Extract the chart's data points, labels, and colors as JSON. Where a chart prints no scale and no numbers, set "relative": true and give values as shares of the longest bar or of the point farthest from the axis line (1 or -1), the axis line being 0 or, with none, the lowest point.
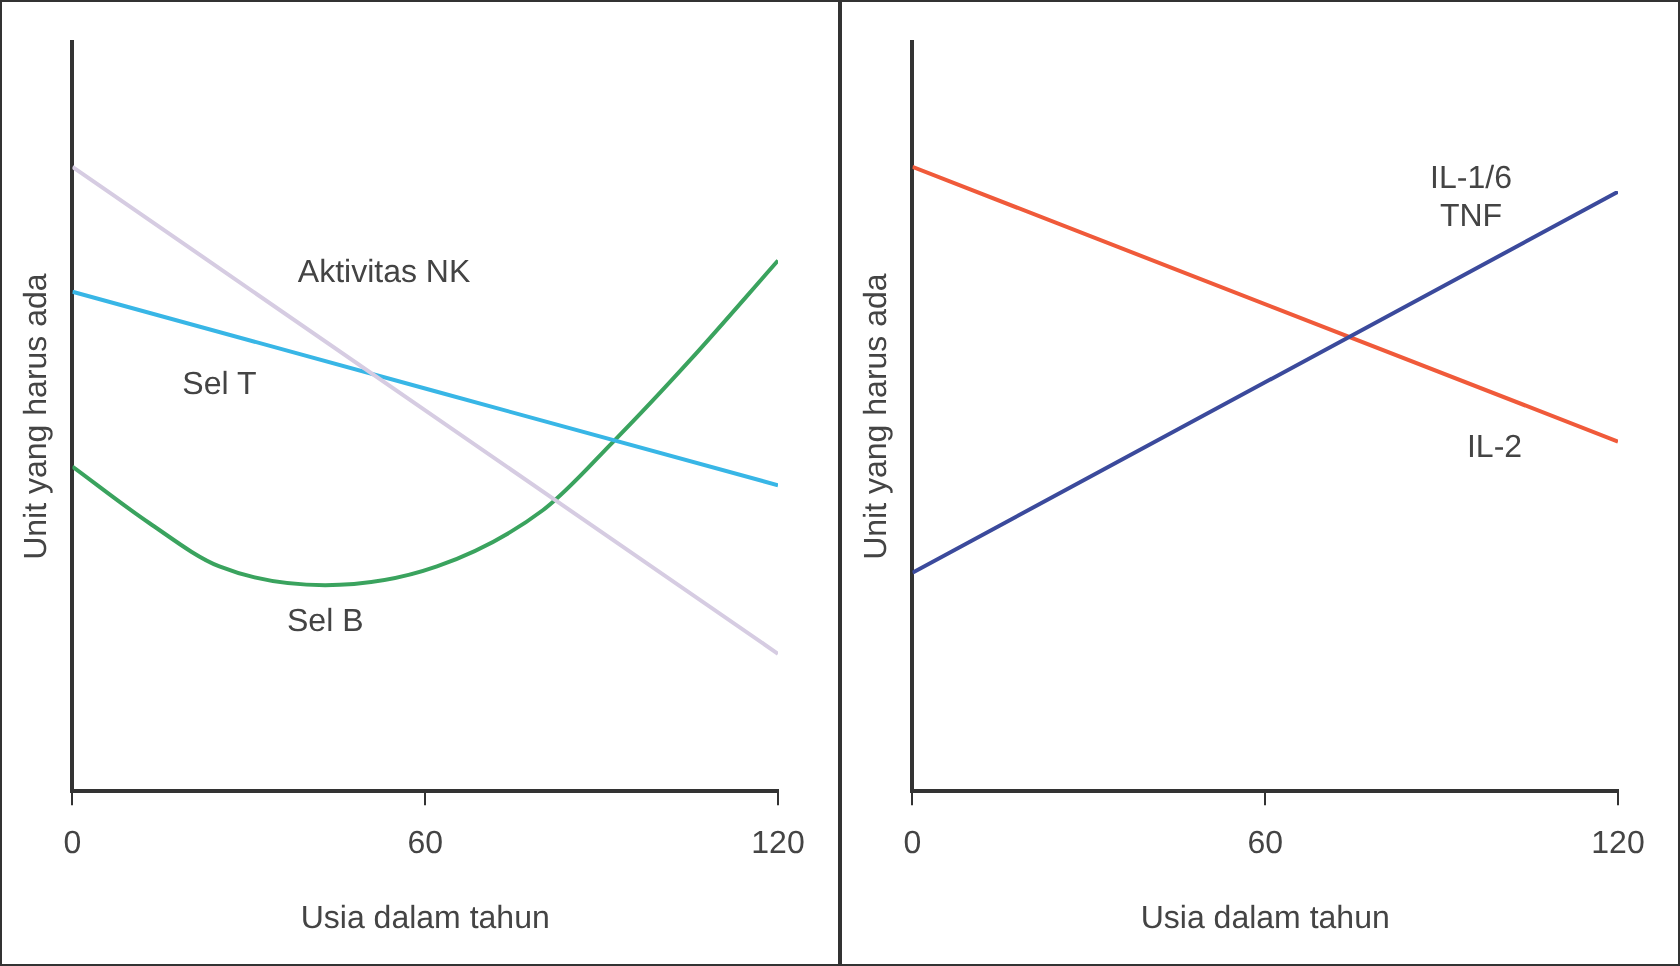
{
  "chart_data": [
    {
      "type": "line",
      "relative": true,
      "xlabel": "Usia dalam tahun",
      "ylabel": "Unit yang harus ada",
      "xlim": [
        0,
        120
      ],
      "xticks": [
        0,
        60,
        120
      ],
      "grid": false,
      "legend": false,
      "marker": "none",
      "series": [
        {
          "name": "Aktivitas NK",
          "color": "#d6cce2",
          "x": [
            0,
            120
          ],
          "values": [
            1,
            0.22
          ]
        },
        {
          "name": "Sel T",
          "color": "#38b6e6",
          "x": [
            0,
            120
          ],
          "values": [
            0.8,
            0.49
          ]
        },
        {
          "name": "Sel B",
          "color": "#3aa35e",
          "x": [
            0,
            13,
            25,
            43,
            62,
            80,
            92,
            105,
            120
          ],
          "values": [
            0.52,
            0.43,
            0.36,
            0.33,
            0.36,
            0.45,
            0.56,
            0.69,
            0.85
          ]
        }
      ]
    },
    {
      "type": "line",
      "relative": true,
      "xlabel": "Usia dalam tahun",
      "ylabel": "Unit yang harus ada",
      "xlim": [
        0,
        120
      ],
      "xticks": [
        0,
        60,
        120
      ],
      "grid": false,
      "legend": false,
      "marker": "none",
      "series": [
        {
          "name": "IL-1/6\nTNF",
          "color": "#3b4a9c",
          "x": [
            0,
            120
          ],
          "values": [
            0.35,
            0.96
          ]
        },
        {
          "name": "IL-2",
          "color": "#f05a3a",
          "x": [
            0,
            120
          ],
          "values": [
            1,
            0.56
          ]
        }
      ]
    }
  ]
}
